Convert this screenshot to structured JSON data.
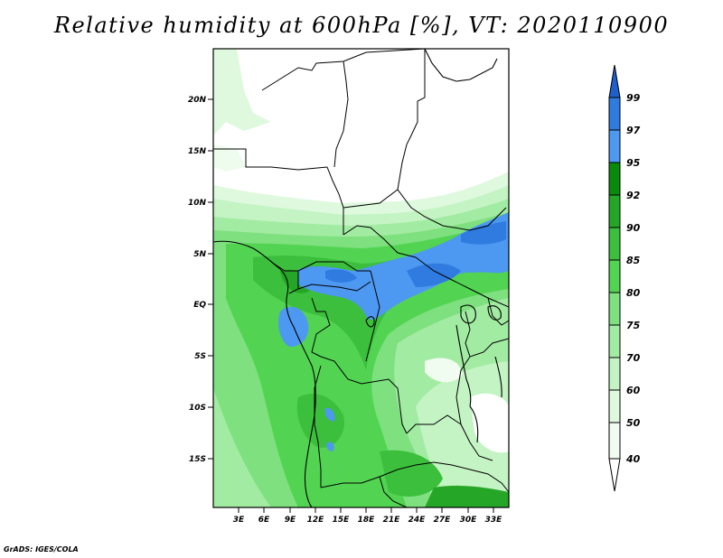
{
  "title": "Relative humidity at 600hPa [%], VT: 2020110900",
  "credit": "GrADS: IGES/COLA",
  "map": {
    "lat_labels": [
      "20N",
      "15N",
      "10N",
      "5N",
      "EQ",
      "5S",
      "10S",
      "15S"
    ],
    "lon_labels": [
      "3E",
      "6E",
      "9E",
      "12E",
      "15E",
      "18E",
      "21E",
      "24E",
      "27E",
      "30E",
      "33E"
    ]
  },
  "colorbar": {
    "labels": [
      "99",
      "97",
      "95",
      "92",
      "90",
      "85",
      "80",
      "75",
      "70",
      "60",
      "50",
      "40"
    ],
    "colors": [
      "#1f5fcc",
      "#2f7be0",
      "#4d98f0",
      "#0a8a0a",
      "#26a626",
      "#3cbf3c",
      "#52d452",
      "#7ee07e",
      "#a2eba2",
      "#c4f3c4",
      "#def9de",
      "#f0fcf0",
      "#ffffff"
    ]
  }
}
